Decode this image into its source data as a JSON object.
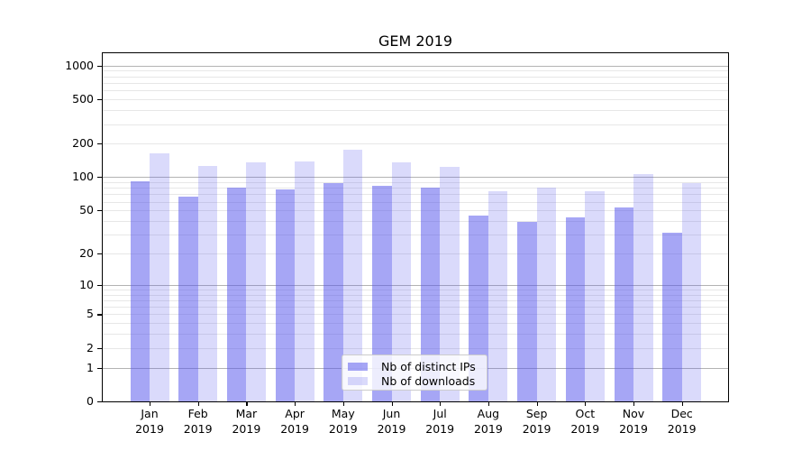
{
  "chart_data": {
    "type": "bar",
    "title": "GEM 2019",
    "categories": [
      "Jan",
      "Feb",
      "Mar",
      "Apr",
      "May",
      "Jun",
      "Jul",
      "Aug",
      "Sep",
      "Oct",
      "Nov",
      "Dec"
    ],
    "x_year": "2019",
    "series": [
      {
        "key": "distinct-ips",
        "name": "Nb of distinct IPs",
        "color": "rgba(85,85,235,0.52)",
        "values": [
          92,
          67,
          81,
          78,
          88,
          84,
          80,
          45,
          39,
          43,
          53,
          31
        ]
      },
      {
        "key": "downloads",
        "name": "Nb of downloads",
        "color": "rgba(85,85,235,0.22)",
        "values": [
          163,
          125,
          136,
          139,
          178,
          135,
          124,
          74,
          80,
          75,
          106,
          88
        ]
      }
    ],
    "y_scale": "log1p",
    "ylim": [
      0,
      1290
    ],
    "y_ticks": [
      0,
      1,
      2,
      5,
      10,
      20,
      50,
      100,
      200,
      500,
      1000
    ],
    "grid": {
      "major": [
        1,
        10,
        100,
        1000
      ],
      "minor": [
        2,
        3,
        4,
        5,
        6,
        7,
        8,
        9,
        20,
        30,
        40,
        50,
        60,
        70,
        80,
        90,
        200,
        300,
        400,
        500,
        600,
        700,
        800,
        900
      ]
    },
    "legend_position": "lower center",
    "colors": {
      "major_grid": "#b3b3b3",
      "minor_grid": "#e7e7e7",
      "axis": "#000000"
    }
  }
}
